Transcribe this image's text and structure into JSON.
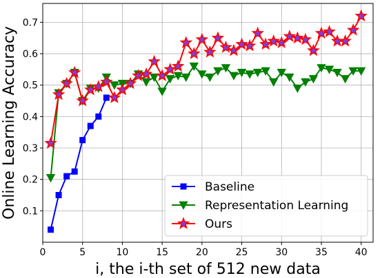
{
  "chart_data": {
    "type": "line",
    "xlabel": "i, the i-th set of 512 new data",
    "ylabel": "Online Learning Accuracy",
    "xlim": [
      0,
      41.5
    ],
    "ylim": [
      0.0,
      0.76
    ],
    "xticks": [
      0,
      5,
      10,
      15,
      20,
      25,
      30,
      35,
      40
    ],
    "yticks": [
      0.1,
      0.2,
      0.3,
      0.4,
      0.5,
      0.6,
      0.7
    ],
    "grid": true,
    "legend_position": "lower-right",
    "series": [
      {
        "name": "Baseline",
        "color": "#0000ff",
        "marker": "square",
        "x": [
          1,
          2,
          3,
          4,
          5,
          6,
          7,
          8
        ],
        "y": [
          0.04,
          0.15,
          0.21,
          0.225,
          0.325,
          0.37,
          0.4,
          0.46
        ]
      },
      {
        "name": "Representation Learning",
        "color": "#008000",
        "marker": "triangle-down",
        "x": [
          1,
          2,
          3,
          4,
          5,
          6,
          7,
          8,
          9,
          10,
          11,
          12,
          13,
          14,
          15,
          16,
          17,
          18,
          19,
          20,
          21,
          22,
          23,
          24,
          25,
          26,
          27,
          28,
          29,
          30,
          31,
          32,
          33,
          34,
          35,
          36,
          37,
          38,
          39,
          40
        ],
        "y": [
          0.205,
          0.475,
          0.505,
          0.54,
          0.45,
          0.49,
          0.49,
          0.525,
          0.5,
          0.505,
          0.505,
          0.535,
          0.51,
          0.525,
          0.48,
          0.52,
          0.53,
          0.525,
          0.56,
          0.535,
          0.525,
          0.545,
          0.555,
          0.53,
          0.54,
          0.535,
          0.54,
          0.545,
          0.51,
          0.54,
          0.525,
          0.49,
          0.51,
          0.52,
          0.555,
          0.55,
          0.54,
          0.52,
          0.545,
          0.545
        ]
      },
      {
        "name": "Ours",
        "color": "#ff0000",
        "marker": "star",
        "x": [
          1,
          2,
          3,
          4,
          5,
          6,
          7,
          8,
          9,
          10,
          11,
          12,
          13,
          14,
          15,
          16,
          17,
          18,
          19,
          20,
          21,
          22,
          23,
          24,
          25,
          26,
          27,
          28,
          29,
          30,
          31,
          32,
          33,
          34,
          35,
          36,
          37,
          38,
          39,
          40
        ],
        "y": [
          0.315,
          0.47,
          0.505,
          0.54,
          0.45,
          0.485,
          0.495,
          0.51,
          0.46,
          0.485,
          0.505,
          0.53,
          0.535,
          0.575,
          0.53,
          0.55,
          0.56,
          0.635,
          0.6,
          0.645,
          0.605,
          0.65,
          0.62,
          0.61,
          0.63,
          0.625,
          0.665,
          0.63,
          0.64,
          0.635,
          0.655,
          0.65,
          0.645,
          0.61,
          0.665,
          0.67,
          0.64,
          0.64,
          0.675,
          0.72
        ]
      }
    ]
  }
}
